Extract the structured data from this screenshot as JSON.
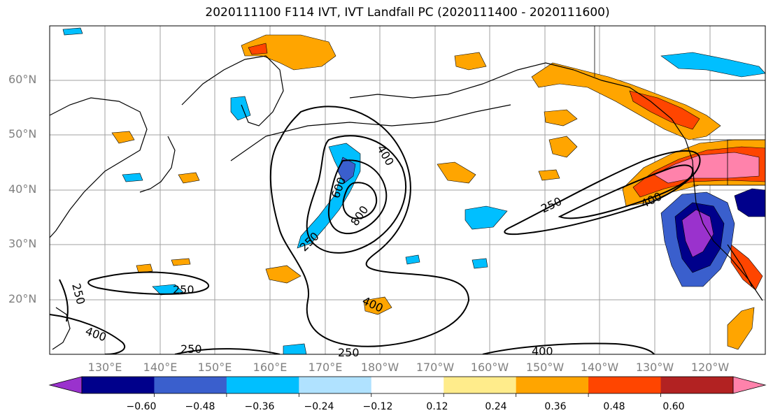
{
  "title": "2020111100 F114 IVT, IVT Landfall PC (2020111400 - 2020111600)",
  "lat_labels": [
    "60°N",
    "50°N",
    "40°N",
    "30°N",
    "20°N"
  ],
  "lon_labels": [
    "130°E",
    "140°E",
    "150°E",
    "160°E",
    "170°E",
    "180°W",
    "170°W",
    "160°W",
    "150°W",
    "140°W",
    "130°W",
    "120°W"
  ],
  "contour_labels": [
    "400",
    "600",
    "800",
    "250",
    "250",
    "400",
    "250",
    "250",
    "400",
    "400",
    "250",
    "250",
    "400"
  ],
  "colorbar": {
    "ticks": [
      "−0.60",
      "−0.48",
      "−0.36",
      "−0.24",
      "−0.12",
      "0.12",
      "0.24",
      "0.36",
      "0.48",
      "0.60"
    ],
    "colors": [
      "#9a32cd",
      "#00008b",
      "#3a5fcd",
      "#00bfff",
      "#b0e2ff",
      "#ffffff",
      "#ffec8b",
      "#ffa500",
      "#ff4500",
      "#b22222",
      "#ff82ab"
    ]
  },
  "colors": {
    "gridline": "#a0a0a0",
    "tick_label": "#808080",
    "contour": "#000000"
  }
}
